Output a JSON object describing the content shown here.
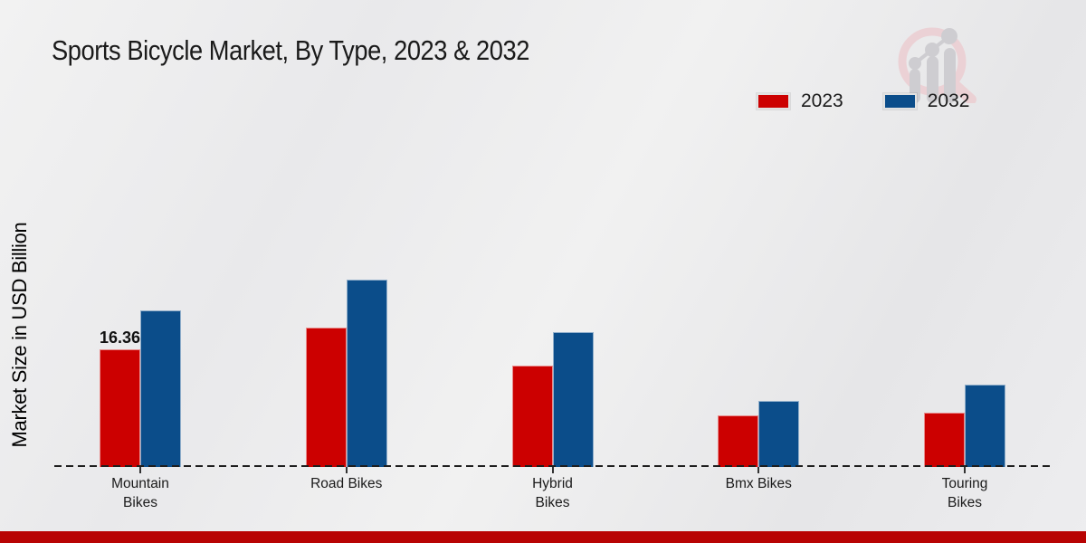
{
  "page": {
    "title": "Sports Bicycle Market, By Type, 2023 & 2032",
    "y_axis_label": "Market Size in USD Billion",
    "footer_color": "#b80303",
    "background_color": "#ebebed",
    "watermark_icon": "magnifier-bar-chart-logo"
  },
  "legend": {
    "items": [
      {
        "label": "2023",
        "color": "#cc0000"
      },
      {
        "label": "2032",
        "color": "#0b4d8a"
      }
    ]
  },
  "chart_data": {
    "type": "bar",
    "title": "Sports Bicycle Market, By Type, 2023 & 2032",
    "xlabel": "",
    "ylabel": "Market Size in USD Billion",
    "categories": [
      "Mountain Bikes",
      "Road Bikes",
      "Hybrid Bikes",
      "Bmx Bikes",
      "Touring Bikes"
    ],
    "tick_display": [
      "Mountain\nBikes",
      "Road Bikes",
      "Hybrid\nBikes",
      "Bmx Bikes",
      "Touring\nBikes"
    ],
    "series": [
      {
        "name": "2023",
        "color": "#cc0000",
        "values": [
          16.36,
          19.4,
          14.1,
          7.2,
          7.6
        ]
      },
      {
        "name": "2032",
        "color": "#0b4d8a",
        "values": [
          21.8,
          26.1,
          18.8,
          9.2,
          11.5
        ]
      }
    ],
    "value_labels": [
      {
        "series": "2023",
        "category_index": 0,
        "text": "16.36"
      }
    ],
    "ylim": [
      0,
      30
    ],
    "grid": false,
    "axis_style": "dashed-baseline-only",
    "legend_position": "top-right"
  }
}
